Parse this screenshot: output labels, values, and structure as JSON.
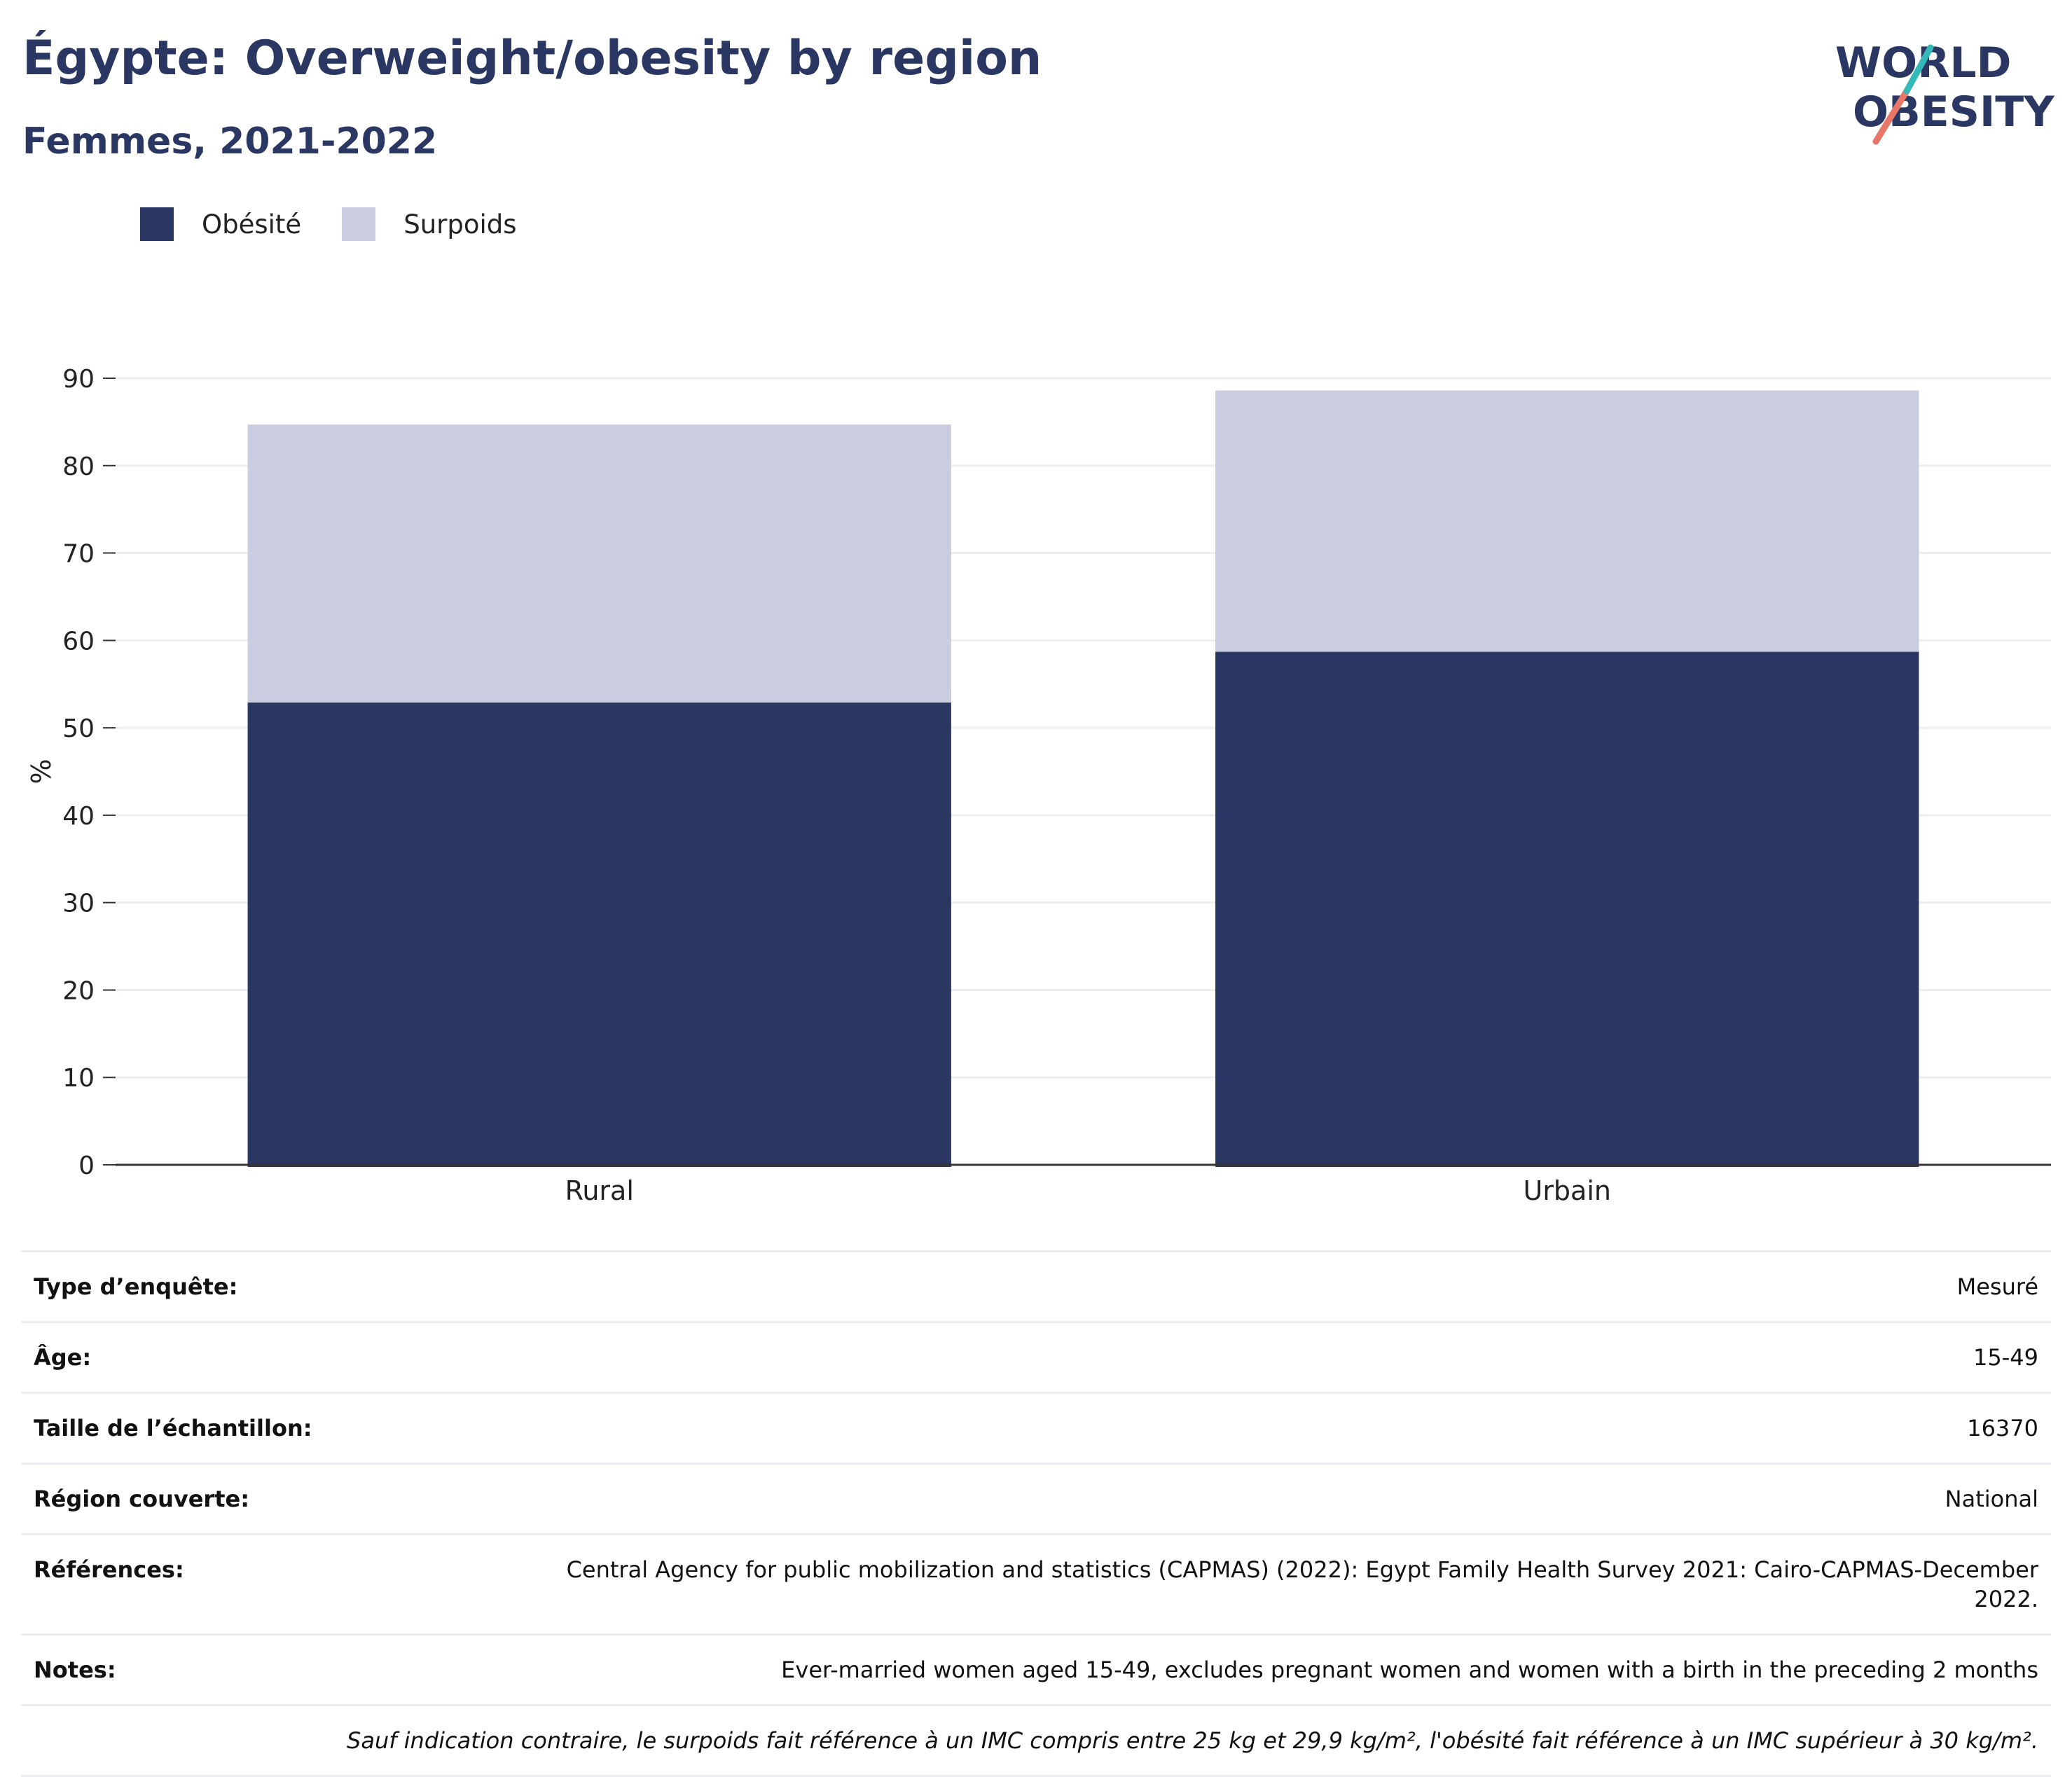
{
  "header": {
    "title": "Égypte: Overweight/obesity by region",
    "subtitle": "Femmes, 2021-2022"
  },
  "logo": {
    "line1": "WORLD",
    "line2": "OBESITY"
  },
  "colors": {
    "obesity": "#2a3763",
    "overweight": "#cacce0",
    "text": "#2a3763",
    "grid": "#eceef3"
  },
  "chart_data": {
    "type": "bar",
    "stacked": true,
    "categories": [
      "Rural",
      "Urbain"
    ],
    "series": [
      {
        "name": "Obésité",
        "values": [
          52.9,
          58.7
        ],
        "color": "#2a3763"
      },
      {
        "name": "Surpoids",
        "values": [
          31.8,
          29.9
        ],
        "color": "#cacce0"
      }
    ],
    "ylabel": "%",
    "ylim": [
      0,
      90
    ],
    "yticks": [
      0,
      10,
      20,
      30,
      40,
      50,
      60,
      70,
      80,
      90
    ],
    "grid": true,
    "legend": "top-left"
  },
  "legend": {
    "items": [
      "Obésité",
      "Surpoids"
    ]
  },
  "meta": [
    {
      "key": "Type d’enquête:",
      "value": "Mesuré"
    },
    {
      "key": "Âge:",
      "value": "15-49"
    },
    {
      "key": "Taille de l’échantillon:",
      "value": "16370"
    },
    {
      "key": "Région couverte:",
      "value": "National"
    },
    {
      "key": "Références:",
      "value": "Central Agency for public mobilization and statistics (CAPMAS) (2022): Egypt Family Health Survey 2021: Cairo-CAPMAS-December 2022."
    },
    {
      "key": "Notes:",
      "value": "Ever-married women aged 15-49, excludes pregnant women and women with a birth in the preceding 2 months"
    }
  ],
  "footnote": "Sauf indication contraire, le surpoids fait référence à un IMC compris entre 25 kg et 29,9 kg/m², l'obésité fait référence à un IMC supérieur à 30 kg/m²."
}
